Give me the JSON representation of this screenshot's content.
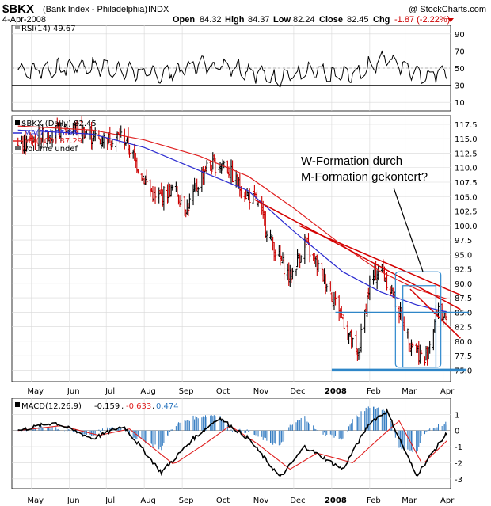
{
  "header": {
    "symbol": "$BKX",
    "name": "(Bank Index - Philadelphia)",
    "exchange": "INDX",
    "copyright": "@ StockCharts.com",
    "date": "4-Apr-2008",
    "open_label": "Open",
    "open": "84.32",
    "high_label": "High",
    "high": "84.37",
    "low_label": "Low",
    "low": "82.24",
    "close_label": "Close",
    "close": "82.45",
    "chg_label": "Chg",
    "chg": "-1.87 (-2.22%)"
  },
  "annotation": {
    "line1": "W-Formation durch",
    "line2": "M-Formation gekontert?"
  },
  "colors": {
    "price_up": "#000000",
    "price_down": "#cc0000",
    "ma75": "#2a2ad0",
    "ma100": "#e02020",
    "trend": "#d40000",
    "support": "#2e86c8",
    "box": "#3a8fd0",
    "hist": "#2e78c0",
    "macd_signal": "#e02020"
  },
  "chart_data": [
    {
      "type": "line",
      "panel": "RSI",
      "legend": "RSI(14) 49.67",
      "ylim": [
        0,
        100
      ],
      "tick_labels": [
        "90",
        "70",
        "50",
        "30",
        "10"
      ],
      "ticks": [
        90,
        70,
        50,
        30,
        10
      ],
      "guide_lines": [
        70,
        30
      ],
      "x": [
        "2007-05",
        "2007-06",
        "2007-07",
        "2007-08",
        "2007-09",
        "2007-10",
        "2007-11",
        "2007-12",
        "2008-01",
        "2008-02",
        "2008-03",
        "2008-04"
      ],
      "series": [
        {
          "values": [
            48,
            53,
            47,
            42,
            55,
            52,
            38,
            45,
            40,
            62,
            42,
            50
          ]
        }
      ]
    },
    {
      "type": "ohlc",
      "panel": "Price",
      "legend": [
        "$BKX (Daily) 82.45",
        "MA(75) 85.05",
        "MA(100) 87.29",
        "Volume undef"
      ],
      "ylim": [
        73.0,
        119.0
      ],
      "tick_labels": [
        "117.5",
        "115.0",
        "112.5",
        "110.0",
        "107.5",
        "105.0",
        "102.5",
        "100.0",
        "97.5",
        "95.0",
        "92.5",
        "90.0",
        "87.5",
        "85.0",
        "82.5",
        "80.0",
        "77.5",
        "75.0"
      ],
      "ticks": [
        117.5,
        115,
        112.5,
        110,
        107.5,
        105,
        102.5,
        100,
        97.5,
        95,
        92.5,
        90,
        87.5,
        85,
        82.5,
        80,
        77.5,
        75
      ],
      "x_labels": [
        "May",
        "Jun",
        "Jul",
        "Aug",
        "Sep",
        "Oct",
        "Nov",
        "Dec",
        "2008",
        "Feb",
        "Mar",
        "Apr"
      ],
      "close_anchors": [
        [
          "2007-04-20",
          113.5
        ],
        [
          "2007-05-15",
          116.0
        ],
        [
          "2007-06-05",
          117.0
        ],
        [
          "2007-06-25",
          114.8
        ],
        [
          "2007-07-15",
          115.5
        ],
        [
          "2007-07-25",
          111.0
        ],
        [
          "2007-08-10",
          104.5
        ],
        [
          "2007-08-25",
          106.5
        ],
        [
          "2007-09-05",
          103.0
        ],
        [
          "2007-09-20",
          110.0
        ],
        [
          "2007-10-05",
          110.8
        ],
        [
          "2007-10-20",
          106.0
        ],
        [
          "2007-11-01",
          104.0
        ],
        [
          "2007-11-15",
          96.0
        ],
        [
          "2007-11-28",
          91.0
        ],
        [
          "2007-12-10",
          97.0
        ],
        [
          "2007-12-28",
          90.0
        ],
        [
          "2008-01-10",
          84.0
        ],
        [
          "2008-01-22",
          77.0
        ],
        [
          "2008-02-01",
          90.0
        ],
        [
          "2008-02-10",
          93.0
        ],
        [
          "2008-02-20",
          88.0
        ],
        [
          "2008-03-05",
          80.0
        ],
        [
          "2008-03-17",
          76.5
        ],
        [
          "2008-03-28",
          86.0
        ],
        [
          "2008-04-04",
          82.45
        ]
      ],
      "ma75": [
        [
          "2007-04-20",
          116.5
        ],
        [
          "2007-06-20",
          115.8
        ],
        [
          "2007-08-01",
          113.5
        ],
        [
          "2007-09-15",
          109.5
        ],
        [
          "2007-10-25",
          106.0
        ],
        [
          "2007-12-01",
          99.0
        ],
        [
          "2008-01-10",
          92.0
        ],
        [
          "2008-02-10",
          88.5
        ],
        [
          "2008-03-10",
          86.3
        ],
        [
          "2008-04-04",
          85.05
        ]
      ],
      "ma100": [
        [
          "2007-04-20",
          117.2
        ],
        [
          "2007-06-20",
          116.5
        ],
        [
          "2007-08-01",
          114.8
        ],
        [
          "2007-09-15",
          112.0
        ],
        [
          "2007-10-25",
          108.5
        ],
        [
          "2007-12-01",
          103.0
        ],
        [
          "2008-01-10",
          96.5
        ],
        [
          "2008-02-10",
          92.0
        ],
        [
          "2008-03-10",
          89.0
        ],
        [
          "2008-04-04",
          87.29
        ]
      ],
      "trendlines": [
        {
          "from": [
            "2007-10-30",
            104.5
          ],
          "to": [
            "2008-04-15",
            85.5
          ]
        },
        {
          "from": [
            "2007-12-05",
            100.0
          ],
          "to": [
            "2008-04-15",
            88.0
          ]
        },
        {
          "from": [
            "2008-03-05",
            89.0
          ],
          "to": [
            "2008-04-15",
            80.5
          ]
        }
      ],
      "support_lines": [
        {
          "from": [
            "2008-01-01",
            75.0
          ],
          "to": [
            "2008-04-20",
            75.0
          ]
        }
      ],
      "resistance_lines": [
        {
          "from": [
            "2008-01-04",
            85.0
          ],
          "to": [
            "2008-04-22",
            85.0
          ]
        }
      ],
      "boxes": [
        {
          "from": [
            "2008-02-22",
            92.0
          ],
          "to": [
            "2008-03-30",
            75.5
          ]
        },
        {
          "from": [
            "2008-02-28",
            89.6
          ],
          "to": [
            "2008-03-26",
            75.5
          ]
        }
      ]
    },
    {
      "type": "bar",
      "panel": "MACD",
      "legend": [
        "MACD(12,26,9)",
        "-0.159",
        "-0.633",
        "0.474"
      ],
      "ylim": [
        -3.6,
        2.0
      ],
      "tick_labels": [
        "1",
        "0",
        "-1",
        "-2",
        "-3"
      ],
      "ticks": [
        1,
        0,
        -1,
        -2,
        -3
      ],
      "macd_anchors": [
        [
          "2007-04-20",
          0.0
        ],
        [
          "2007-05-20",
          0.5
        ],
        [
          "2007-06-20",
          -0.5
        ],
        [
          "2007-07-15",
          0.3
        ],
        [
          "2007-08-15",
          -2.6
        ],
        [
          "2007-09-10",
          -0.5
        ],
        [
          "2007-10-01",
          0.8
        ],
        [
          "2007-10-25",
          -0.5
        ],
        [
          "2007-11-20",
          -2.9
        ],
        [
          "2007-12-10",
          -1.0
        ],
        [
          "2008-01-10",
          -2.4
        ],
        [
          "2008-02-01",
          0.5
        ],
        [
          "2008-02-15",
          1.2
        ],
        [
          "2008-03-10",
          -2.8
        ],
        [
          "2008-03-25",
          -1.2
        ],
        [
          "2008-04-04",
          -0.159
        ]
      ],
      "signal_anchors": [
        [
          "2007-04-20",
          0.0
        ],
        [
          "2007-05-25",
          0.3
        ],
        [
          "2007-06-25",
          -0.3
        ],
        [
          "2007-07-20",
          0.1
        ],
        [
          "2007-08-25",
          -2.1
        ],
        [
          "2007-09-20",
          -0.8
        ],
        [
          "2007-10-10",
          0.3
        ],
        [
          "2007-11-01",
          -0.8
        ],
        [
          "2007-11-28",
          -2.4
        ],
        [
          "2007-12-20",
          -1.4
        ],
        [
          "2008-01-18",
          -2.0
        ],
        [
          "2008-02-10",
          -0.4
        ],
        [
          "2008-02-25",
          0.6
        ],
        [
          "2008-03-15",
          -2.1
        ],
        [
          "2008-04-04",
          -0.633
        ]
      ]
    }
  ]
}
